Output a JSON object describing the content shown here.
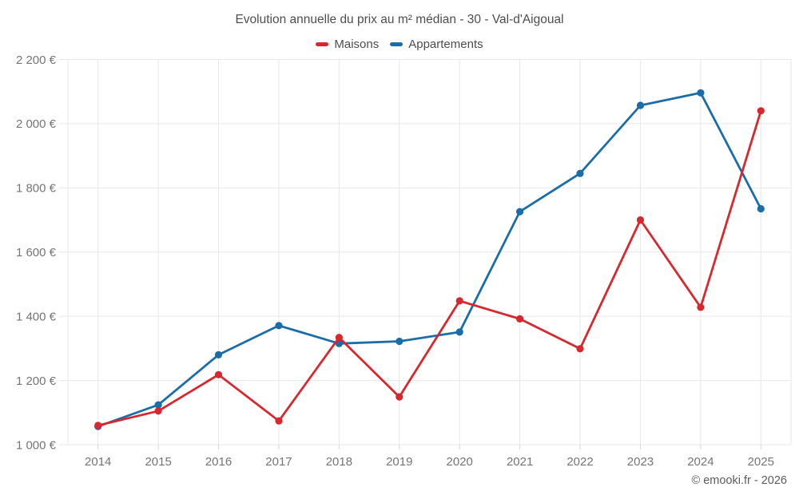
{
  "title": "Evolution annuelle du prix au m² médian - 30 - Val-d'Aigoual",
  "footer": "© emooki.fr - 2026",
  "colors": {
    "maisons": "#d7282f",
    "appartements": "#1a6da8",
    "grid": "#e7e7e7",
    "tick": "#d6d6d6",
    "axis_text": "#757575",
    "title_text": "#4e4e4e"
  },
  "chart_data": {
    "type": "line",
    "categories": [
      "2014",
      "2015",
      "2016",
      "2017",
      "2018",
      "2019",
      "2020",
      "2021",
      "2022",
      "2023",
      "2024",
      "2025"
    ],
    "series": [
      {
        "name": "Maisons",
        "color": "#d7282f",
        "values": [
          1060,
          1105,
          1218,
          1074,
          1334,
          1149,
          1448,
          1392,
          1299,
          1700,
          1428,
          2040
        ]
      },
      {
        "name": "Appartements",
        "color": "#1a6da8",
        "values": [
          1057,
          1124,
          1280,
          1371,
          1315,
          1322,
          1351,
          1726,
          1845,
          2057,
          2096,
          1735
        ]
      }
    ],
    "title": "Evolution annuelle du prix au m² médian - 30 - Val-d'Aigoual",
    "xlabel": "",
    "ylabel": "",
    "ylim": [
      1000,
      2200
    ],
    "ytick_step": 200,
    "ytick_labels": [
      "1 000 €",
      "1 200 €",
      "1 400 €",
      "1 600 €",
      "1 800 €",
      "2 000 €",
      "2 200 €"
    ],
    "grid": true,
    "legend_position": "top"
  }
}
